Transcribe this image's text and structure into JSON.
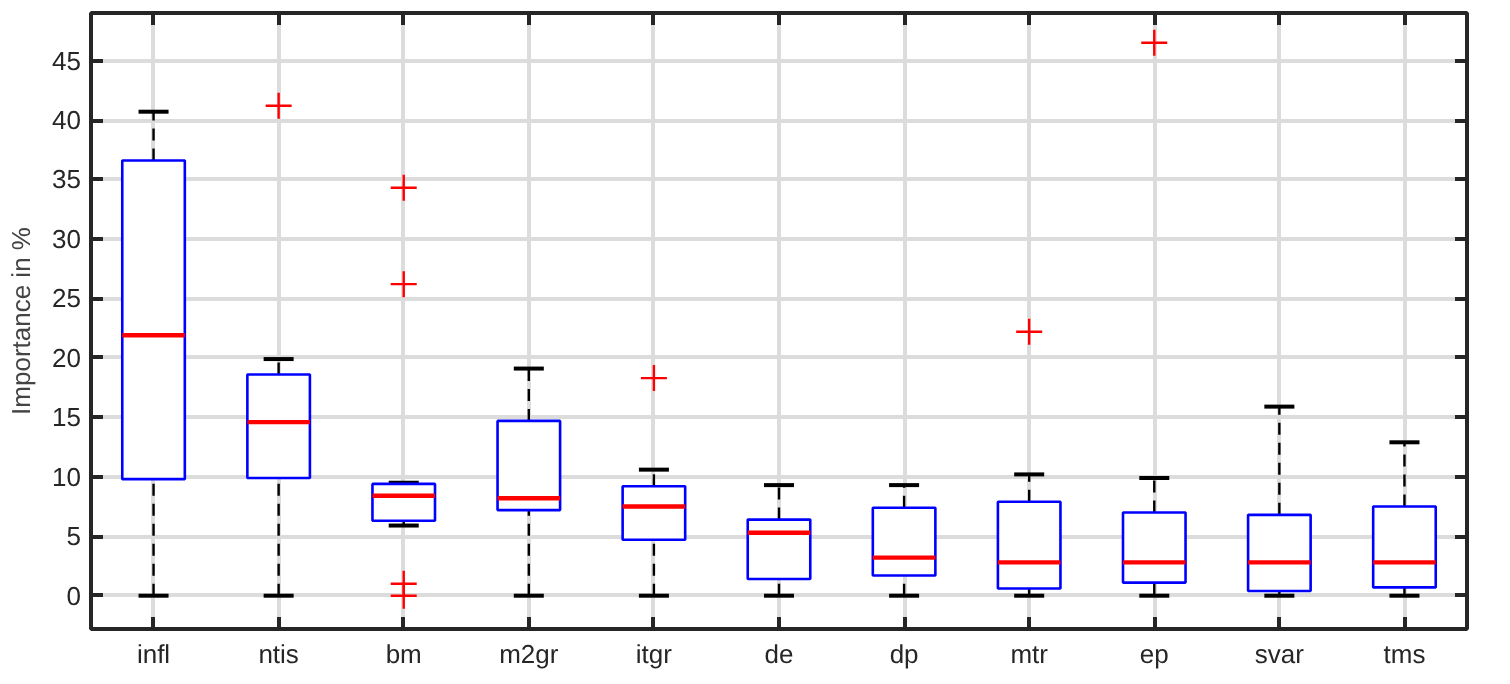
{
  "chart_data": {
    "type": "box",
    "ylabel": "Importance in %",
    "categories": [
      "infl",
      "ntis",
      "bm",
      "m2gr",
      "itgr",
      "de",
      "dp",
      "mtr",
      "ep",
      "svar",
      "tms"
    ],
    "color": "#0000ff",
    "marker": "cross",
    "grid": true,
    "ylim": [
      -2.8,
      49
    ],
    "yticks": [
      0,
      5,
      10,
      15,
      20,
      25,
      30,
      35,
      40,
      45
    ],
    "boxes": [
      {
        "low": 0,
        "q1": 9.8,
        "median": 21.9,
        "q3": 36.6,
        "high": 40.7
      },
      {
        "low": 0,
        "q1": 9.9,
        "median": 14.6,
        "q3": 18.6,
        "high": 19.9,
        "outliers": [
          41.2
        ]
      },
      {
        "low": 5.9,
        "q1": 6.3,
        "median": 8.4,
        "q3": 9.4,
        "high": 9.5,
        "outliers": [
          34.3,
          26.2,
          1.0,
          0
        ]
      },
      {
        "low": 0,
        "q1": 7.2,
        "median": 8.2,
        "q3": 14.7,
        "high": 19.1
      },
      {
        "low": 0,
        "q1": 4.7,
        "median": 7.5,
        "q3": 9.2,
        "high": 10.6,
        "outliers": [
          18.3
        ]
      },
      {
        "low": 0,
        "q1": 1.4,
        "median": 5.3,
        "q3": 6.4,
        "high": 9.3
      },
      {
        "low": 0,
        "q1": 1.7,
        "median": 3.2,
        "q3": 7.4,
        "high": 9.3
      },
      {
        "low": 0,
        "q1": 0.6,
        "median": 2.8,
        "q3": 7.9,
        "high": 10.2,
        "outliers": [
          22.2
        ]
      },
      {
        "low": 0,
        "q1": 1.1,
        "median": 2.8,
        "q3": 7.0,
        "high": 9.9,
        "outliers": [
          46.5
        ]
      },
      {
        "low": 0,
        "q1": 0.4,
        "median": 2.8,
        "q3": 6.8,
        "high": 15.9
      },
      {
        "low": 0,
        "q1": 0.7,
        "median": 2.8,
        "q3": 7.5,
        "high": 12.9
      }
    ]
  }
}
